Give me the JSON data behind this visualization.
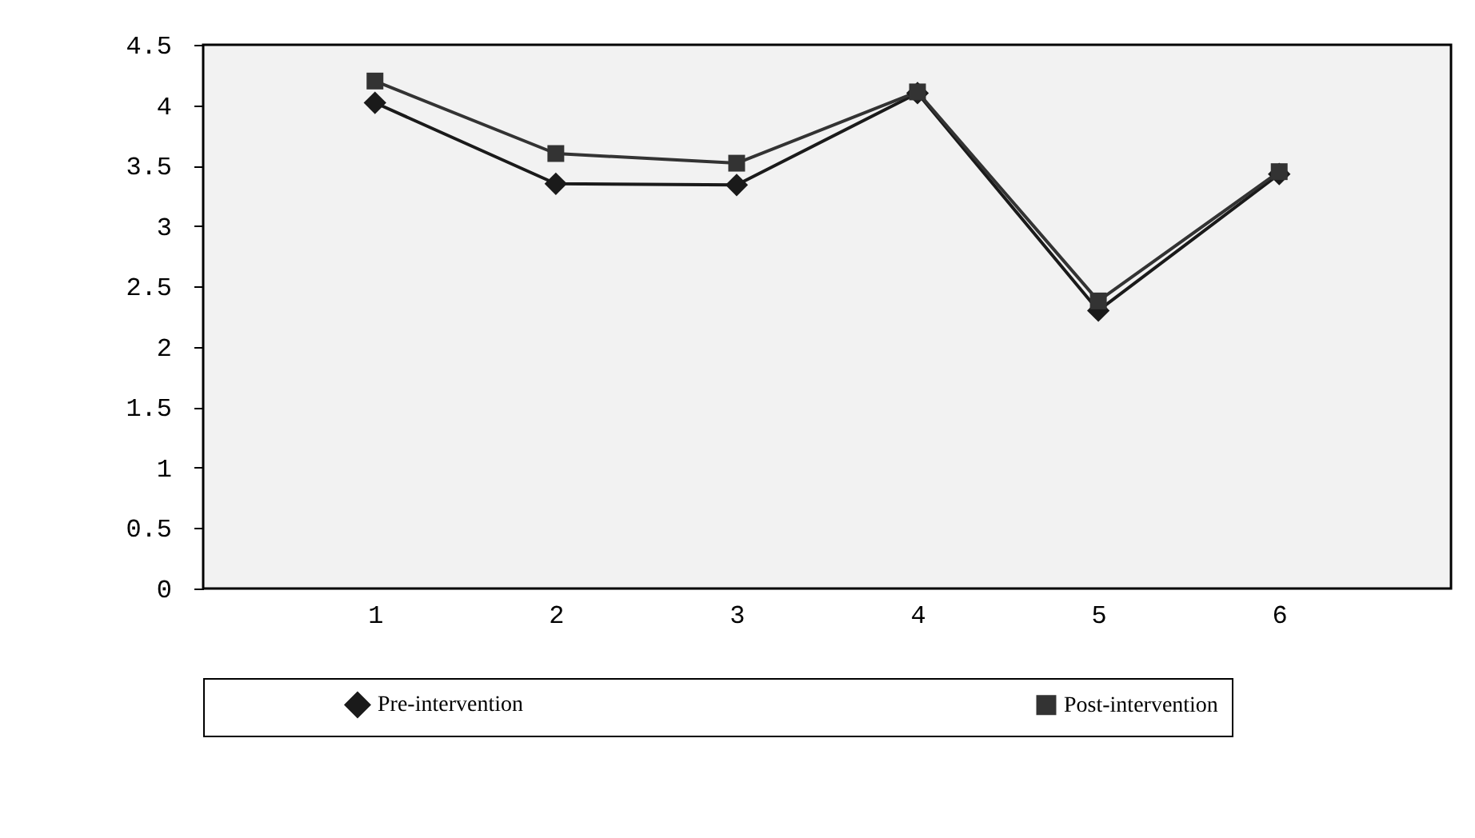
{
  "chart_data": {
    "type": "line",
    "categories": [
      "1",
      "2",
      "3",
      "4",
      "5",
      "6"
    ],
    "series": [
      {
        "name": "Pre-intervention",
        "color": "#1a1a1a",
        "marker": "diamond",
        "values": [
          4.02,
          3.35,
          3.34,
          4.1,
          2.3,
          3.43
        ]
      },
      {
        "name": "Post-intervention",
        "color": "#333333",
        "marker": "square",
        "values": [
          4.2,
          3.6,
          3.52,
          4.11,
          2.38,
          3.45
        ]
      }
    ],
    "ylim": [
      0,
      4.5
    ],
    "yticks": [
      0,
      0.5,
      1,
      1.5,
      2,
      2.5,
      3,
      3.5,
      4,
      4.5
    ],
    "grid": false,
    "legend": "bottom",
    "line_style": "solid"
  }
}
